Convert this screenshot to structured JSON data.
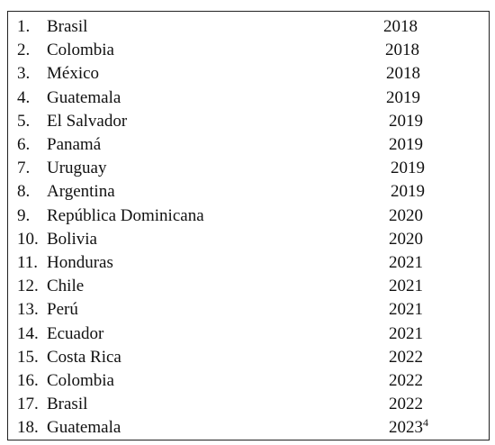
{
  "table": {
    "rows": [
      {
        "number": "1.",
        "country": "Brasil",
        "year": "2018"
      },
      {
        "number": "2.",
        "country": "Colombia",
        "year": "2018"
      },
      {
        "number": "3.",
        "country": "México",
        "year": "2018"
      },
      {
        "number": "4.",
        "country": "Guatemala",
        "year": "2019"
      },
      {
        "number": "5.",
        "country": "El Salvador",
        "year": "2019"
      },
      {
        "number": "6.",
        "country": "Panamá",
        "year": "2019"
      },
      {
        "number": "7.",
        "country": "Uruguay",
        "year": "2019"
      },
      {
        "number": "8.",
        "country": "Argentina",
        "year": "2019"
      },
      {
        "number": "9.",
        "country": "República Dominicana",
        "year": "2020"
      },
      {
        "number": "10.",
        "country": "Bolivia",
        "year": "2020"
      },
      {
        "number": "11.",
        "country": "Honduras",
        "year": "2021"
      },
      {
        "number": "12.",
        "country": "Chile",
        "year": "2021"
      },
      {
        "number": "13.",
        "country": "Perú",
        "year": "2021"
      },
      {
        "number": "14.",
        "country": "Ecuador",
        "year": "2021"
      },
      {
        "number": "15.",
        "country": "Costa Rica",
        "year": "2022"
      },
      {
        "number": "16.",
        "country": "Colombia",
        "year": "2022"
      },
      {
        "number": "17.",
        "country": "Brasil",
        "year": "2022"
      },
      {
        "number": "18.",
        "country": "Guatemala",
        "year": "2023",
        "footnote": "4"
      }
    ]
  }
}
